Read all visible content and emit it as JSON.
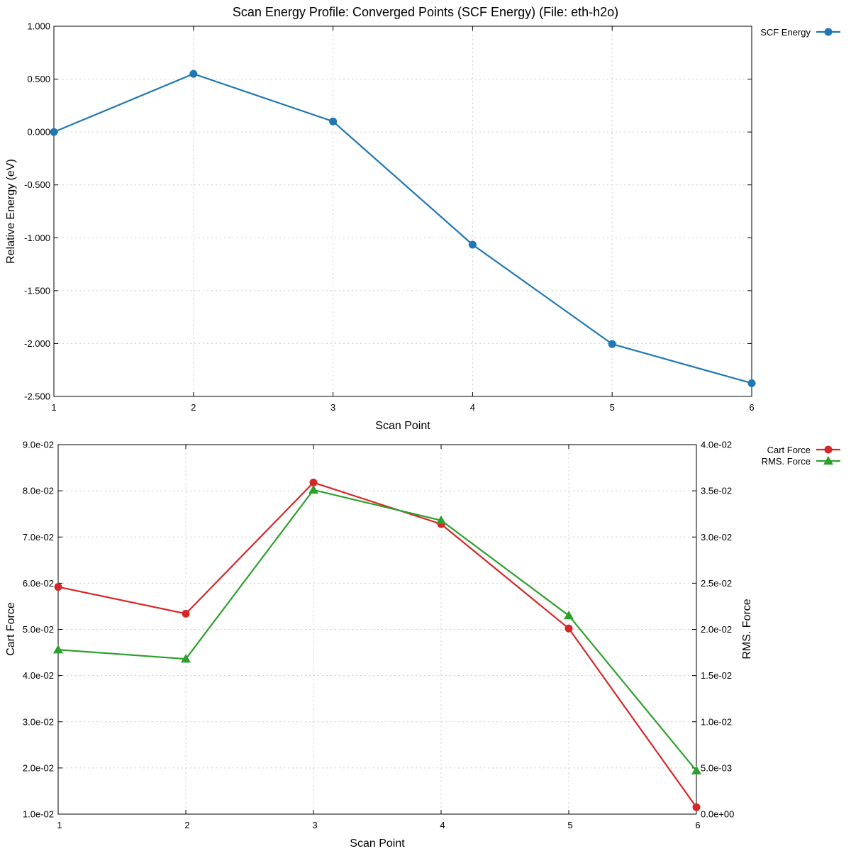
{
  "title": "Scan Energy Profile: Converged Points (SCF Energy) (File: eth-h2o)",
  "colors": {
    "scf": "#1f77b4",
    "cart": "#d62728",
    "rms": "#2ca02c"
  },
  "chart_data": [
    {
      "type": "line",
      "xlabel": "Scan Point",
      "ylabel": "Relative Energy (eV)",
      "x": [
        1,
        2,
        3,
        4,
        5,
        6
      ],
      "xlim": [
        1,
        6
      ],
      "ylim": [
        -2.5,
        1.0
      ],
      "x_ticks": [
        "1",
        "2",
        "3",
        "4",
        "5",
        "6"
      ],
      "y_ticks": [
        "1.000",
        "0.500",
        "0.000",
        "-0.500",
        "-1.000",
        "-1.500",
        "-2.000",
        "-2.500"
      ],
      "y_tick_values": [
        1.0,
        0.5,
        0.0,
        -0.5,
        -1.0,
        -1.5,
        -2.0,
        -2.5
      ],
      "grid": true,
      "legend_position": "top-right outside",
      "series": [
        {
          "name": "SCF Energy",
          "marker": "circle",
          "values": [
            0.0,
            0.55,
            0.1,
            -1.065,
            -2.005,
            -2.375
          ]
        }
      ]
    },
    {
      "type": "line",
      "xlabel": "Scan Point",
      "ylabel": "Cart Force",
      "y2label": "RMS. Force",
      "x": [
        1,
        2,
        3,
        4,
        5,
        6
      ],
      "xlim": [
        1,
        6
      ],
      "ylim": [
        0.01,
        0.09
      ],
      "y2lim": [
        0.0,
        0.04
      ],
      "x_ticks": [
        "1",
        "2",
        "3",
        "4",
        "5",
        "6"
      ],
      "y_ticks": [
        "9.0e-02",
        "8.0e-02",
        "7.0e-02",
        "6.0e-02",
        "5.0e-02",
        "4.0e-02",
        "3.0e-02",
        "2.0e-02",
        "1.0e-02"
      ],
      "y_tick_values": [
        0.09,
        0.08,
        0.07,
        0.06,
        0.05,
        0.04,
        0.03,
        0.02,
        0.01
      ],
      "y2_ticks": [
        "4.0e-02",
        "3.5e-02",
        "3.0e-02",
        "2.5e-02",
        "2.0e-02",
        "1.5e-02",
        "1.0e-02",
        "5.0e-03",
        "0.0e+00"
      ],
      "y2_tick_values": [
        0.04,
        0.035,
        0.03,
        0.025,
        0.02,
        0.015,
        0.01,
        0.005,
        0.0
      ],
      "grid": true,
      "legend_position": "top-right outside",
      "series": [
        {
          "name": "Cart Force",
          "marker": "circle",
          "axis": "left",
          "values": [
            0.0592,
            0.0534,
            0.0818,
            0.0728,
            0.0502,
            0.0115
          ]
        },
        {
          "name": "RMS. Force",
          "marker": "triangle",
          "axis": "right",
          "values": [
            0.0178,
            0.0168,
            0.0351,
            0.0318,
            0.0215,
            0.0047
          ]
        }
      ]
    }
  ]
}
